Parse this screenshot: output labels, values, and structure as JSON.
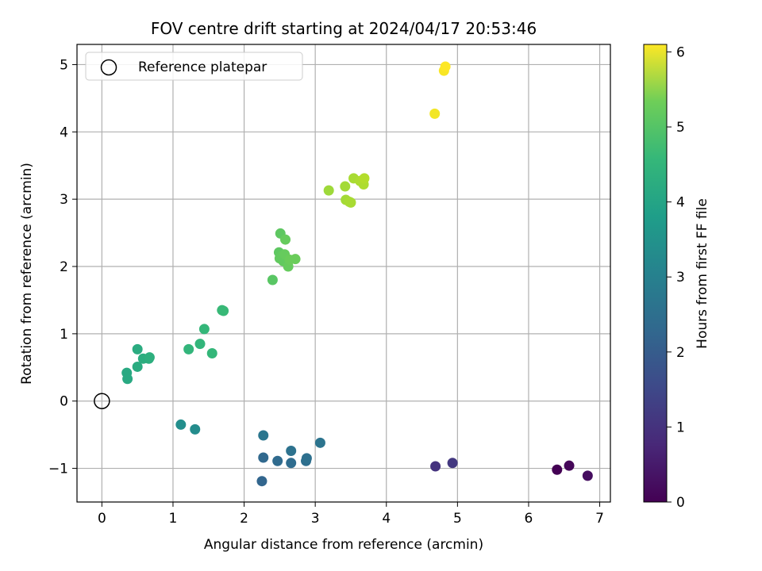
{
  "chart_data": {
    "type": "scatter",
    "title": "FOV centre drift starting at 2024/04/17 20:53:46",
    "xlabel": "Angular distance from reference (arcmin)",
    "ylabel": "Rotation from reference (arcmin)",
    "xlim": [
      -0.35,
      7.15
    ],
    "ylim": [
      -1.5,
      5.3
    ],
    "x_ticks": [
      0,
      1,
      2,
      3,
      4,
      5,
      6,
      7
    ],
    "y_ticks": [
      -1,
      0,
      1,
      2,
      3,
      4,
      5
    ],
    "grid": true,
    "legend": {
      "placement": "top-left",
      "entries": [
        "Reference platepar"
      ]
    },
    "reference_point": {
      "x": 0,
      "y": 0,
      "marker": "open-circle",
      "label": "Reference platepar"
    },
    "colorbar": {
      "label": "Hours from first FF file",
      "range": [
        0,
        6.1
      ],
      "ticks": [
        0,
        1,
        2,
        3,
        4,
        5,
        6
      ],
      "colormap": "viridis"
    },
    "points": [
      {
        "x": 6.4,
        "y": -1.02,
        "t": 0.0
      },
      {
        "x": 6.57,
        "y": -0.96,
        "t": 0.1
      },
      {
        "x": 6.83,
        "y": -1.11,
        "t": 0.2
      },
      {
        "x": 4.69,
        "y": -0.97,
        "t": 0.9
      },
      {
        "x": 4.93,
        "y": -0.92,
        "t": 1.0
      },
      {
        "x": 2.25,
        "y": -1.19,
        "t": 2.0
      },
      {
        "x": 2.27,
        "y": -0.84,
        "t": 2.05
      },
      {
        "x": 2.47,
        "y": -0.89,
        "t": 2.1
      },
      {
        "x": 2.66,
        "y": -0.92,
        "t": 2.15
      },
      {
        "x": 2.87,
        "y": -0.89,
        "t": 2.2
      },
      {
        "x": 2.88,
        "y": -0.85,
        "t": 2.25
      },
      {
        "x": 2.66,
        "y": -0.74,
        "t": 2.3
      },
      {
        "x": 2.27,
        "y": -0.51,
        "t": 2.4
      },
      {
        "x": 3.07,
        "y": -0.62,
        "t": 2.35
      },
      {
        "x": 1.31,
        "y": -0.42,
        "t": 2.95
      },
      {
        "x": 1.11,
        "y": -0.35,
        "t": 3.0
      },
      {
        "x": 0.36,
        "y": 0.33,
        "t": 3.7
      },
      {
        "x": 0.35,
        "y": 0.42,
        "t": 3.7
      },
      {
        "x": 0.5,
        "y": 0.51,
        "t": 3.75
      },
      {
        "x": 0.5,
        "y": 0.77,
        "t": 3.75
      },
      {
        "x": 0.58,
        "y": 0.63,
        "t": 3.8
      },
      {
        "x": 0.66,
        "y": 0.63,
        "t": 3.8
      },
      {
        "x": 0.67,
        "y": 0.65,
        "t": 3.85
      },
      {
        "x": 1.22,
        "y": 0.77,
        "t": 4.0
      },
      {
        "x": 1.38,
        "y": 0.85,
        "t": 4.0
      },
      {
        "x": 1.44,
        "y": 1.07,
        "t": 4.05
      },
      {
        "x": 1.55,
        "y": 0.71,
        "t": 4.05
      },
      {
        "x": 1.69,
        "y": 1.35,
        "t": 4.1
      },
      {
        "x": 1.71,
        "y": 1.34,
        "t": 4.1
      },
      {
        "x": 2.4,
        "y": 1.8,
        "t": 4.5
      },
      {
        "x": 2.49,
        "y": 2.21,
        "t": 4.55
      },
      {
        "x": 2.51,
        "y": 2.49,
        "t": 4.55
      },
      {
        "x": 2.5,
        "y": 2.12,
        "t": 4.6
      },
      {
        "x": 2.53,
        "y": 2.16,
        "t": 4.6
      },
      {
        "x": 2.55,
        "y": 2.08,
        "t": 4.6
      },
      {
        "x": 2.57,
        "y": 2.18,
        "t": 4.65
      },
      {
        "x": 2.58,
        "y": 2.4,
        "t": 4.65
      },
      {
        "x": 2.62,
        "y": 2.0,
        "t": 4.65
      },
      {
        "x": 2.64,
        "y": 2.1,
        "t": 4.7
      },
      {
        "x": 2.72,
        "y": 2.11,
        "t": 4.7
      },
      {
        "x": 3.19,
        "y": 3.13,
        "t": 5.2
      },
      {
        "x": 3.42,
        "y": 3.19,
        "t": 5.25
      },
      {
        "x": 3.43,
        "y": 2.99,
        "t": 5.25
      },
      {
        "x": 3.48,
        "y": 2.96,
        "t": 5.3
      },
      {
        "x": 3.5,
        "y": 2.95,
        "t": 5.3
      },
      {
        "x": 3.54,
        "y": 3.31,
        "t": 5.3
      },
      {
        "x": 3.63,
        "y": 3.27,
        "t": 5.35
      },
      {
        "x": 3.68,
        "y": 3.22,
        "t": 5.35
      },
      {
        "x": 3.69,
        "y": 3.31,
        "t": 5.4
      },
      {
        "x": 4.68,
        "y": 4.27,
        "t": 6.0
      },
      {
        "x": 4.81,
        "y": 4.91,
        "t": 6.05
      },
      {
        "x": 4.83,
        "y": 4.97,
        "t": 6.1
      }
    ]
  }
}
